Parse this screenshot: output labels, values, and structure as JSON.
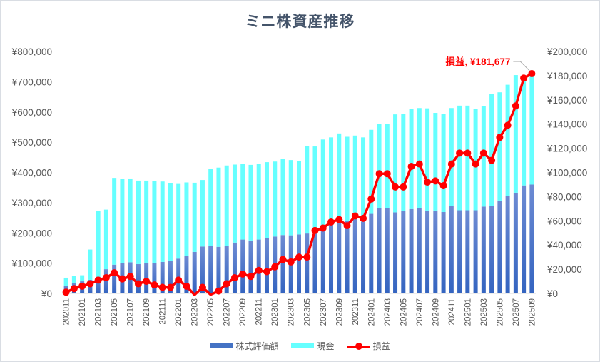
{
  "chart_data": {
    "type": "bar",
    "title": "ミニ株資産推移",
    "stacked": true,
    "categories": [
      "202011",
      "202012",
      "202101",
      "202102",
      "202103",
      "202104",
      "202105",
      "202106",
      "202107",
      "202108",
      "202109",
      "202110",
      "202111",
      "202112",
      "202201",
      "202202",
      "202203",
      "202204",
      "202205",
      "202206",
      "202207",
      "202208",
      "202209",
      "202210",
      "202211",
      "202212",
      "202301",
      "202302",
      "202303",
      "202304",
      "202305",
      "202306",
      "202307",
      "202308",
      "202309",
      "202310",
      "202311",
      "202312",
      "202401",
      "202402",
      "202403",
      "202404",
      "202405",
      "202406",
      "202407",
      "202408",
      "202409",
      "202410",
      "202411",
      "202412",
      "202501",
      "202502",
      "202503",
      "202504",
      "202505",
      "202506",
      "202507",
      "202508",
      "202509"
    ],
    "x_tick_labels": [
      "202011",
      "202101",
      "202103",
      "202105",
      "202107",
      "202109",
      "202111",
      "202201",
      "202203",
      "202205",
      "202207",
      "202209",
      "202211",
      "202301",
      "202303",
      "202305",
      "202307",
      "202309",
      "202311",
      "202401",
      "202403",
      "202405",
      "202407",
      "202409",
      "202411",
      "202501",
      "202503",
      "202505",
      "202507",
      "202509"
    ],
    "series": [
      {
        "name": "株式評価額",
        "type": "bar",
        "axis": "left",
        "color": "#4472c4",
        "values": [
          26000,
          35000,
          40000,
          45000,
          55000,
          80000,
          95000,
          100000,
          103000,
          97000,
          100000,
          101000,
          104000,
          108000,
          115000,
          125000,
          137000,
          155000,
          158000,
          154000,
          157000,
          168000,
          178000,
          175000,
          178000,
          183000,
          188000,
          193000,
          192000,
          195000,
          198000,
          216000,
          215000,
          228000,
          236000,
          240000,
          248000,
          237000,
          263000,
          281000,
          281000,
          268000,
          273000,
          279000,
          283000,
          274000,
          274000,
          269000,
          288000,
          275000,
          275000,
          275000,
          287000,
          289000,
          307000,
          321000,
          333000,
          357000,
          360000
        ]
      },
      {
        "name": "現金",
        "type": "bar",
        "axis": "left",
        "color": "#66ffff",
        "values": [
          26000,
          23000,
          20000,
          100000,
          218000,
          197000,
          287000,
          278000,
          277000,
          276000,
          273000,
          270000,
          266000,
          257000,
          247000,
          242000,
          229000,
          220000,
          255000,
          262000,
          266000,
          258000,
          250000,
          250000,
          251000,
          251000,
          248000,
          251000,
          249000,
          243000,
          289000,
          270000,
          294000,
          288000,
          293000,
          278000,
          274000,
          279000,
          278000,
          280000,
          280000,
          324000,
          320000,
          332000,
          330000,
          338000,
          323000,
          324000,
          325000,
          346000,
          346000,
          336000,
          333000,
          370000,
          358000,
          369000,
          389000,
          360000,
          366000
        ]
      },
      {
        "name": "損益",
        "type": "line",
        "axis": "right",
        "color": "#ff0000",
        "values": [
          1000,
          4000,
          6000,
          8000,
          11000,
          13000,
          17000,
          12000,
          14000,
          8000,
          10000,
          7000,
          5000,
          5000,
          11000,
          6000,
          -4000,
          5000,
          -1000,
          2000,
          8000,
          13000,
          16000,
          14000,
          19000,
          18000,
          22000,
          28000,
          26000,
          30000,
          30000,
          52000,
          54000,
          59000,
          61000,
          56000,
          64000,
          62000,
          78000,
          99000,
          99000,
          88000,
          88000,
          105000,
          107000,
          92000,
          93000,
          89000,
          107000,
          116000,
          116000,
          107000,
          116000,
          110000,
          129000,
          139000,
          155000,
          178000,
          181677
        ]
      }
    ],
    "y_left": {
      "min": 0,
      "max": 800000,
      "step": 100000,
      "tick_labels": [
        "¥0",
        "¥100,000",
        "¥200,000",
        "¥300,000",
        "¥400,000",
        "¥500,000",
        "¥600,000",
        "¥700,000",
        "¥800,000"
      ]
    },
    "y_right": {
      "min": 0,
      "max": 200000,
      "step": 20000,
      "tick_labels": [
        "¥0",
        "¥20,000",
        "¥40,000",
        "¥60,000",
        "¥80,000",
        "¥100,000",
        "¥120,000",
        "¥140,000",
        "¥160,000",
        "¥180,000",
        "¥200,000"
      ]
    },
    "annotation": {
      "text": "損益, ¥181,677",
      "series": "損益",
      "category": "202509"
    },
    "grid": false,
    "legend_position": "bottom",
    "legend": [
      "株式評価額",
      "現金",
      "損益"
    ]
  }
}
